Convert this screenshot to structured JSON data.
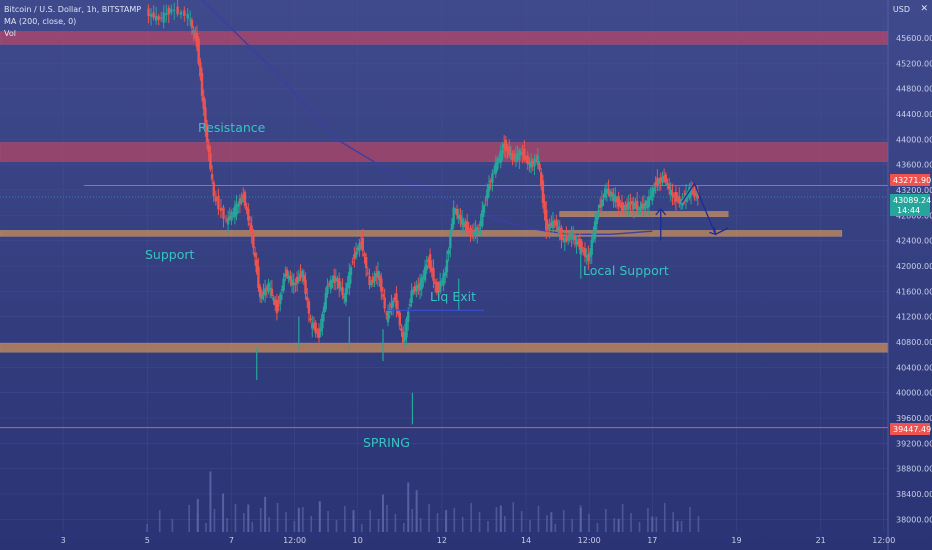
{
  "header": {
    "symbol_line": "Bitcoin / U.S. Dollar, 1h, BITSTAMP",
    "ma_line": "MA (200, close, 0)",
    "vol_line": "Vol",
    "currency": "USD"
  },
  "colors": {
    "background_top": "#3d4688",
    "background_bottom": "#2a3475",
    "candle_up": "#26a69a",
    "candle_down": "#ef5350",
    "resistance_zone": "#e0465a",
    "support_zone": "#f0a050",
    "ma_line": "#3b3f9e",
    "annotation_text": "#37c4c0",
    "current_price_tag": "#26a69a",
    "red_line_tag": "#ef5350"
  },
  "annotations": {
    "resistance": "Resistance",
    "support": "Support",
    "liq_exit": "Liq Exit",
    "local_support": "Local Support",
    "spring": "SPRING"
  },
  "price_tags": {
    "level_line": "43271.90",
    "current_price": "43089.24",
    "countdown": "14:44",
    "low_line": "39447.49"
  },
  "chart_data": {
    "type": "candlestick",
    "title": "Bitcoin / U.S. Dollar, 1h, BITSTAMP",
    "ylim": [
      37800,
      46200
    ],
    "y_ticks": [
      38000,
      38400,
      38800,
      39200,
      39600,
      40000,
      40400,
      40800,
      41200,
      41600,
      42000,
      42400,
      42800,
      43200,
      43600,
      44000,
      44400,
      44800,
      45200,
      45600
    ],
    "y_tick_labels": [
      "38000.00",
      "38400.00",
      "38800.00",
      "39200.00",
      "39600.00",
      "40000.00",
      "40400.00",
      "40800.00",
      "41200.00",
      "41600.00",
      "42000.00",
      "42400.00",
      "42800.00",
      "43200.00",
      "43600.00",
      "44000.00",
      "44400.00",
      "44800.00",
      "45200.00",
      "45600.00"
    ],
    "x_labels": [
      "3",
      "5",
      "7",
      "12:00",
      "10",
      "12",
      "14",
      "12:00",
      "17",
      "19",
      "21",
      "12:00"
    ],
    "x_range_days": [
      1.5,
      22.6
    ],
    "x_label_days": [
      3,
      5,
      7,
      8.5,
      10,
      12,
      14,
      15.5,
      17,
      19,
      21,
      22.5
    ],
    "series": [
      {
        "path": [
          [
            5.0,
            46000
          ],
          [
            5.3,
            45900
          ],
          [
            5.6,
            46050
          ],
          [
            6.0,
            45950
          ],
          [
            6.2,
            45500
          ],
          [
            6.4,
            44200
          ],
          [
            6.6,
            43100
          ],
          [
            6.9,
            42700
          ],
          [
            7.1,
            42900
          ],
          [
            7.3,
            43100
          ],
          [
            7.5,
            42500
          ],
          [
            7.7,
            41500
          ],
          [
            7.9,
            41700
          ],
          [
            8.1,
            41300
          ],
          [
            8.3,
            41900
          ],
          [
            8.5,
            41700
          ],
          [
            8.7,
            41900
          ],
          [
            8.9,
            41100
          ],
          [
            9.1,
            40900
          ],
          [
            9.3,
            41700
          ],
          [
            9.5,
            41800
          ],
          [
            9.7,
            41500
          ],
          [
            9.9,
            42100
          ],
          [
            10.1,
            42400
          ],
          [
            10.3,
            41700
          ],
          [
            10.5,
            41900
          ],
          [
            10.7,
            41200
          ],
          [
            10.9,
            41500
          ],
          [
            11.1,
            40800
          ],
          [
            11.3,
            41600
          ],
          [
            11.5,
            41700
          ],
          [
            11.7,
            42100
          ],
          [
            11.9,
            41600
          ],
          [
            12.1,
            41900
          ],
          [
            12.3,
            42900
          ],
          [
            12.5,
            42700
          ],
          [
            12.7,
            42500
          ],
          [
            12.9,
            42600
          ],
          [
            13.1,
            43200
          ],
          [
            13.3,
            43600
          ],
          [
            13.5,
            43900
          ],
          [
            13.7,
            43700
          ],
          [
            13.9,
            43800
          ],
          [
            14.1,
            43600
          ],
          [
            14.3,
            43700
          ],
          [
            14.5,
            42600
          ],
          [
            14.7,
            42700
          ],
          [
            14.9,
            42400
          ],
          [
            15.1,
            42500
          ],
          [
            15.3,
            42300
          ],
          [
            15.5,
            42100
          ],
          [
            15.7,
            42800
          ],
          [
            15.9,
            43200
          ],
          [
            16.1,
            43100
          ],
          [
            16.3,
            42900
          ],
          [
            16.5,
            43000
          ],
          [
            16.7,
            42900
          ],
          [
            16.9,
            43000
          ],
          [
            17.1,
            43300
          ],
          [
            17.3,
            43400
          ],
          [
            17.5,
            43100
          ],
          [
            17.7,
            43000
          ],
          [
            17.9,
            43200
          ],
          [
            18.1,
            43100
          ]
        ]
      }
    ],
    "lows": [
      [
        7.6,
        40200
      ],
      [
        8.6,
        40700
      ],
      [
        9.8,
        40700
      ],
      [
        10.6,
        40500
      ],
      [
        11.3,
        39500
      ],
      [
        12.4,
        41300
      ],
      [
        15.3,
        41800
      ]
    ],
    "ma_200": [
      [
        6.3,
        46200
      ],
      [
        8.0,
        45100
      ],
      [
        9.5,
        44000
      ],
      [
        11.0,
        43400
      ],
      [
        12.0,
        43100
      ],
      [
        13.0,
        42800
      ],
      [
        14.0,
        42600
      ],
      [
        15.0,
        42500
      ],
      [
        16.0,
        42500
      ],
      [
        17.0,
        42550
      ]
    ],
    "resistance_zones": [
      {
        "from": 45500,
        "to": 45700
      },
      {
        "from": 43650,
        "to": 43950
      }
    ],
    "support_zones": [
      {
        "from": 42470,
        "to": 42560,
        "x_from": 1.5,
        "x_to": 21.5
      },
      {
        "from": 40640,
        "to": 40780,
        "x_from": 1.5,
        "x_to": 22.6
      },
      {
        "from": 42800,
        "to": 42860,
        "x_from": 14.8,
        "x_to": 18.8
      }
    ],
    "red_lines": [
      {
        "y": 43271.9,
        "x_from": 3.5,
        "x_to": 22.6
      },
      {
        "y": 39447.49,
        "x_from": 1.5,
        "x_to": 22.6
      }
    ],
    "liq_exit_line": {
      "y": 41300,
      "x_from": 10.7,
      "x_to": 13.0
    },
    "projection_arrow": [
      [
        17.7,
        43000
      ],
      [
        18.0,
        43300
      ],
      [
        18.5,
        42500
      ],
      [
        18.8,
        42600
      ]
    ],
    "up_arrow": {
      "x": 17.2,
      "y_from": 42400,
      "y_to": 42900
    },
    "volume": {
      "ylim": [
        0,
        1
      ],
      "bars": [
        [
          6.2,
          0.3
        ],
        [
          6.5,
          0.55
        ],
        [
          6.8,
          0.35
        ],
        [
          7.4,
          0.25
        ],
        [
          7.8,
          0.32
        ],
        [
          8.6,
          0.22
        ],
        [
          9.1,
          0.28
        ],
        [
          9.9,
          0.2
        ],
        [
          10.6,
          0.34
        ],
        [
          11.2,
          0.45
        ],
        [
          11.4,
          0.38
        ],
        [
          12.1,
          0.2
        ],
        [
          13.4,
          0.24
        ],
        [
          14.6,
          0.18
        ],
        [
          15.3,
          0.22
        ],
        [
          16.2,
          0.12
        ],
        [
          17.0,
          0.14
        ],
        [
          17.6,
          0.1
        ]
      ]
    }
  }
}
